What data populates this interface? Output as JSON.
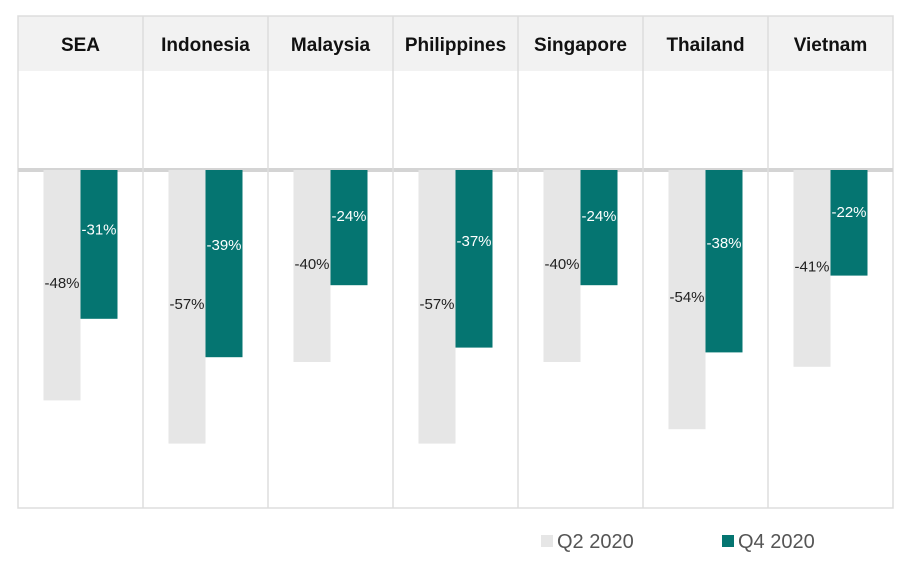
{
  "chart_data": {
    "type": "bar",
    "categories": [
      "SEA",
      "Indonesia",
      "Malaysia",
      "Philippines",
      "Singapore",
      "Thailand",
      "Vietnam"
    ],
    "series": [
      {
        "name": "Q2 2020",
        "values": [
          -48,
          -57,
          -40,
          -57,
          -40,
          -54,
          -41
        ],
        "labels": [
          "-48%",
          "-57%",
          "-40%",
          "-57%",
          "-40%",
          "-54%",
          "-41%"
        ]
      },
      {
        "name": "Q4 2020",
        "values": [
          -31,
          -39,
          -24,
          -37,
          -24,
          -38,
          -22
        ],
        "labels": [
          "-31%",
          "-39%",
          "-24%",
          "-37%",
          "-24%",
          "-38%",
          "-22%"
        ]
      }
    ],
    "ylim": [
      -70,
      0
    ],
    "grid": false,
    "legend": "bottom-right",
    "colors": {
      "Q2 2020": "#e6e6e6",
      "Q4 2020": "#057571",
      "header_bg": "#f2f2f2",
      "border": "#dddddd"
    }
  }
}
